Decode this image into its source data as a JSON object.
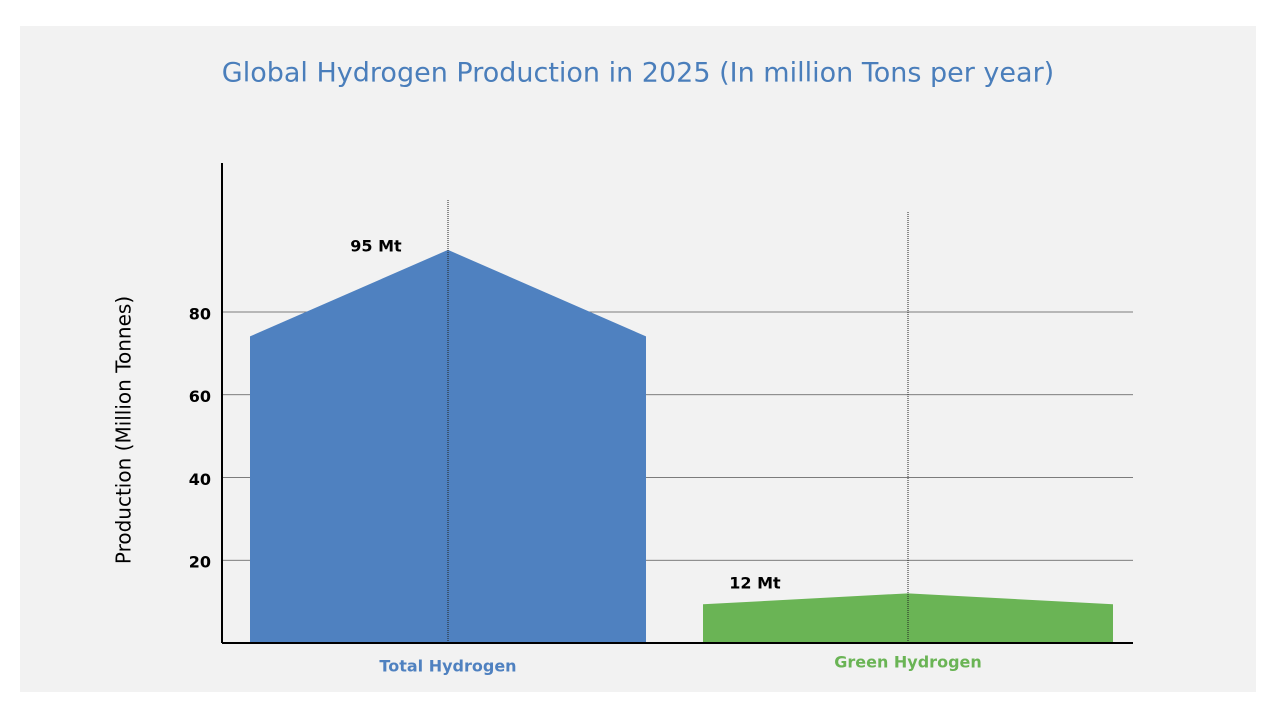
{
  "chart_data": {
    "type": "bar",
    "title": "Global Hydrogen Production in 2025 (In million Tons per year)",
    "y_label": "Production (Million Tonnes)",
    "categories": [
      "Total Hydrogen",
      "Green Hydrogen"
    ],
    "values": [
      95,
      12
    ],
    "value_labels": [
      "95 Mt",
      "12 Mt"
    ],
    "colors": [
      "#4f81c0",
      "#6ab455"
    ],
    "ylim": [
      0,
      116
    ],
    "yticks": [
      20,
      40,
      60,
      80
    ],
    "grid": true
  }
}
